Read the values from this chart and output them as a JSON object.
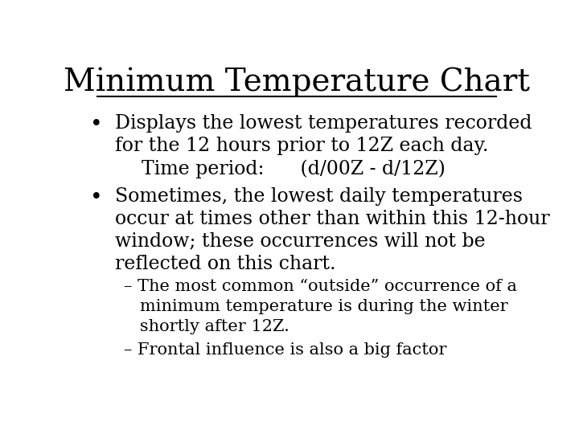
{
  "title": "Minimum Temperature Chart",
  "background_color": "#ffffff",
  "text_color": "#000000",
  "title_fontsize": 28,
  "body_fontsize": 17,
  "sub_fontsize": 15,
  "bullet1_line1": "Displays the lowest temperatures recorded",
  "bullet1_line2": "for the 12 hours prior to 12Z each day.",
  "bullet1_sub": "Time period:      (d/00Z - d/12Z)",
  "bullet2_line1": "Sometimes, the lowest daily temperatures",
  "bullet2_line2": "occur at times other than within this 12-hour",
  "bullet2_line3": "window; these occurrences will not be",
  "bullet2_line4": "reflected on this chart.",
  "dash1_line1": "– The most common “outside” occurrence of a",
  "dash1_line2": "   minimum temperature is during the winter",
  "dash1_line3": "   shortly after 12Z.",
  "dash2_line1": "– Frontal influence is also a big factor"
}
